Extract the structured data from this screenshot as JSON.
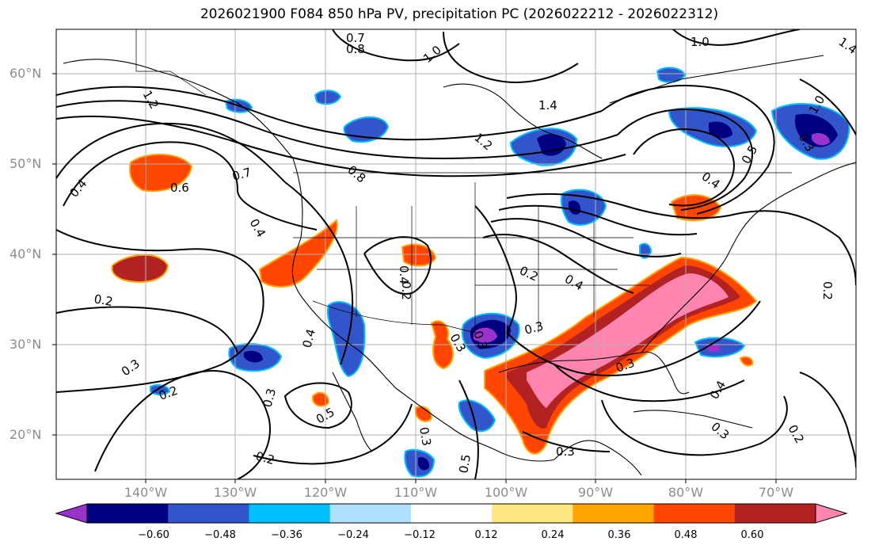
{
  "title": "2026021900 F084 850 hPa PV, precipitation PC (2026022212 - 2026022312)",
  "lat_labels": [
    "60°N",
    "50°N",
    "40°N",
    "30°N",
    "20°N"
  ],
  "lon_labels": [
    "140°W",
    "130°W",
    "120°W",
    "110°W",
    "100°W",
    "90°W",
    "80°W",
    "70°W"
  ],
  "colorbar": {
    "colors": [
      "#9933cc",
      "#000080",
      "#3355cc",
      "#00bfff",
      "#b0e0ff",
      "#ffffff",
      "#ffe680",
      "#ffa500",
      "#ff4500",
      "#b22222",
      "#ff85b0"
    ],
    "tick_labels": [
      "−0.60",
      "−0.48",
      "−0.36",
      "−0.24",
      "−0.12",
      "0.12",
      "0.24",
      "0.36",
      "0.48",
      "0.60"
    ]
  },
  "contour_labels": [
    "0.7",
    "0.8",
    "1.0",
    "1.0",
    "1.4",
    "1.4",
    "1.2",
    "1.2",
    "1.0",
    "0.5",
    "0.4",
    "0.4",
    "0.6",
    "0.7",
    "0.8",
    "0.4",
    "0.4",
    "0.2",
    "0.2",
    "0.4",
    "0.2",
    "0.4",
    "0.3",
    "0.3",
    "0.3",
    "0.2",
    "0.3",
    "0.5",
    "0.3",
    "0.3",
    "0.2",
    "0.3",
    "0.5",
    "0.4",
    "0.3",
    "0.2",
    "0.2",
    "0.3",
    "0.3"
  ]
}
